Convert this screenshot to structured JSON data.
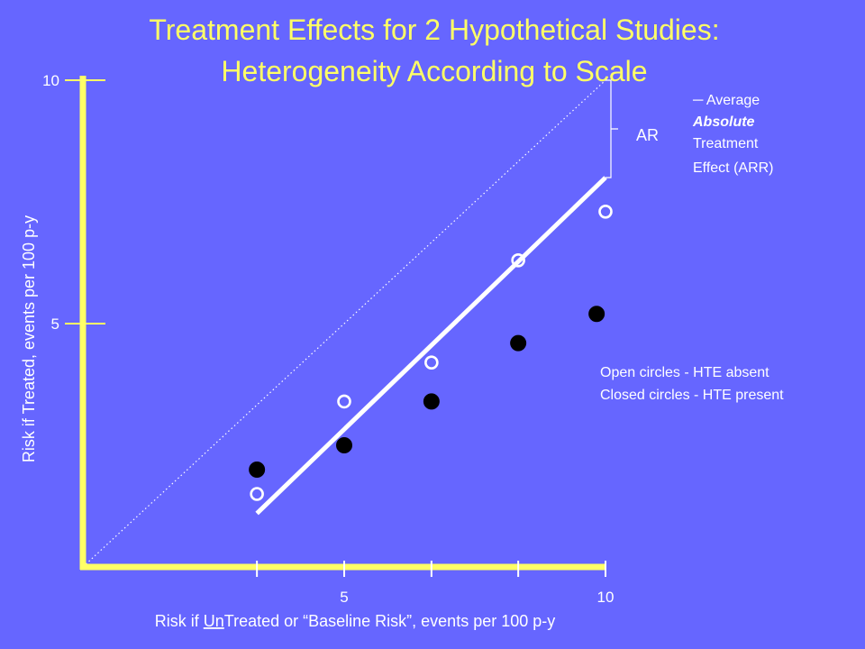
{
  "colors": {
    "background": "#6666ff",
    "title": "#ffff66",
    "axes": "#ffff66",
    "text": "#ffffff",
    "points": "#000000"
  },
  "chart_data": {
    "type": "scatter",
    "title": "Treatment Effects for 2 Hypothetical Studies:",
    "subtitle": "Heterogeneity According to Scale",
    "xlabel": {
      "before": "Risk if ",
      "underlined": "Un",
      "after": "Treated or “Baseline Risk”, events per 100 p-y"
    },
    "ylabel": "Risk if Treated, events per 100 p-y",
    "xlim": [
      0,
      10
    ],
    "ylim": [
      0,
      10
    ],
    "x_ticks": [
      3.33,
      5,
      6.67,
      8.33,
      10
    ],
    "x_tick_labels": [
      {
        "value": 5,
        "label": "5"
      },
      {
        "value": 10,
        "label": "10"
      }
    ],
    "y_ticks": [
      {
        "value": 5,
        "label": "5"
      },
      {
        "value": 10,
        "label": "10"
      }
    ],
    "series": [
      {
        "name": "Open circles - HTE absent",
        "marker": "open",
        "x": [
          3.33,
          5.0,
          6.67,
          8.33,
          10.0
        ],
        "y": [
          1.5,
          3.4,
          4.2,
          6.3,
          7.3
        ]
      },
      {
        "name": "Closed circles - HTE present",
        "marker": "closed",
        "x": [
          3.33,
          5.0,
          6.67,
          8.33,
          9.83
        ],
        "y": [
          2.0,
          2.5,
          3.4,
          4.6,
          5.2
        ]
      }
    ],
    "fit_line": {
      "x": [
        3.33,
        10.0
      ],
      "y": [
        1.1,
        8.0
      ]
    },
    "identity_line": {
      "x": [
        0,
        10
      ],
      "y": [
        0,
        10
      ],
      "style": "dotted"
    },
    "annotations": {
      "ar_label": "AR",
      "ar_bracket": {
        "x": 10.0,
        "y": [
          8.0,
          10.0
        ]
      },
      "arr_lines": [
        "─ Average",
        "Absolute",
        "Treatment",
        "Effect (ARR)"
      ]
    }
  }
}
